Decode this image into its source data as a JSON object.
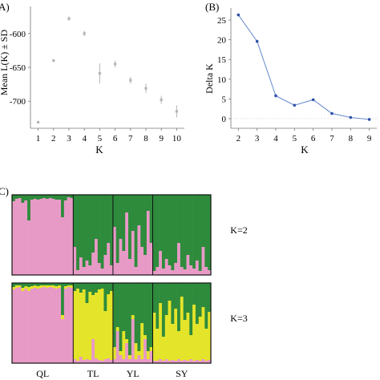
{
  "panels": {
    "a": {
      "label": "A)",
      "ylabel": "Mean L(K) ± SD",
      "xlabel": "K"
    },
    "b": {
      "label": "(B)",
      "ylabel": "Delta K",
      "xlabel": "K"
    },
    "c": {
      "label": "C)"
    }
  },
  "chart_data": [
    {
      "type": "scatter",
      "title": "",
      "xlabel": "K",
      "ylabel": "Mean L(K) ± SD",
      "x": [
        1,
        2,
        3,
        4,
        5,
        6,
        7,
        8,
        9,
        10
      ],
      "y": [
        -731,
        -640,
        -578,
        -600,
        -659,
        -645,
        -669,
        -681,
        -698,
        -715
      ],
      "sd": [
        0,
        2,
        3,
        4,
        15,
        5,
        5,
        7,
        6,
        9
      ],
      "x_ticks": [
        1,
        2,
        3,
        4,
        5,
        6,
        7,
        8,
        9,
        10
      ],
      "y_ticks": [
        -600,
        -650,
        -700
      ],
      "xlim": [
        0.5,
        10.5
      ],
      "ylim": [
        -740,
        -560
      ],
      "grid": false,
      "point_color": "#b5b5b5"
    },
    {
      "type": "line",
      "title": "",
      "xlabel": "K",
      "ylabel": "Delta K",
      "x": [
        2,
        3,
        4,
        5,
        6,
        7,
        8,
        9
      ],
      "y": [
        26.3,
        19.6,
        5.8,
        3.4,
        4.8,
        1.3,
        0.3,
        -0.2
      ],
      "x_ticks": [
        2,
        3,
        4,
        5,
        6,
        7,
        8,
        9
      ],
      "y_ticks": [
        0,
        5,
        10,
        15,
        20,
        25
      ],
      "xlim": [
        1.6,
        9.4
      ],
      "ylim": [
        -1,
        28
      ],
      "grid": false,
      "line_color": "#6f8fcf",
      "point_color": "#2f4fa8"
    },
    {
      "type": "bar",
      "subtype": "stacked-admixture",
      "populations": [
        "QL",
        "TL",
        "YL",
        "SY"
      ],
      "population_sizes": [
        20,
        13,
        13,
        19
      ],
      "colors": {
        "pink": "#e89ac6",
        "green": "#2e8b3c",
        "yellow": "#e4e42a"
      },
      "plots": [
        {
          "label": "K=2",
          "components": [
            "pink",
            "green"
          ],
          "values": [
            [
              0.92,
              0.08
            ],
            [
              0.95,
              0.05
            ],
            [
              0.96,
              0.04
            ],
            [
              0.9,
              0.1
            ],
            [
              0.93,
              0.07
            ],
            [
              0.68,
              0.32
            ],
            [
              0.94,
              0.06
            ],
            [
              0.95,
              0.05
            ],
            [
              0.94,
              0.06
            ],
            [
              0.95,
              0.05
            ],
            [
              0.96,
              0.04
            ],
            [
              0.95,
              0.05
            ],
            [
              0.96,
              0.04
            ],
            [
              0.95,
              0.05
            ],
            [
              0.94,
              0.06
            ],
            [
              0.94,
              0.06
            ],
            [
              0.72,
              0.28
            ],
            [
              0.93,
              0.07
            ],
            [
              0.97,
              0.03
            ],
            [
              0.96,
              0.04
            ],
            [
              0.35,
              0.65
            ],
            [
              0.06,
              0.94
            ],
            [
              0.22,
              0.78
            ],
            [
              0.1,
              0.9
            ],
            [
              0.18,
              0.82
            ],
            [
              0.12,
              0.88
            ],
            [
              0.28,
              0.72
            ],
            [
              0.45,
              0.55
            ],
            [
              0.15,
              0.85
            ],
            [
              0.08,
              0.92
            ],
            [
              0.25,
              0.75
            ],
            [
              0.4,
              0.6
            ],
            [
              0.12,
              0.88
            ],
            [
              0.6,
              0.4
            ],
            [
              0.15,
              0.85
            ],
            [
              0.45,
              0.55
            ],
            [
              0.3,
              0.7
            ],
            [
              0.78,
              0.22
            ],
            [
              0.2,
              0.8
            ],
            [
              0.55,
              0.45
            ],
            [
              0.1,
              0.9
            ],
            [
              0.62,
              0.38
            ],
            [
              0.35,
              0.65
            ],
            [
              0.25,
              0.75
            ],
            [
              0.8,
              0.2
            ],
            [
              0.4,
              0.6
            ],
            [
              0.05,
              0.95
            ],
            [
              0.1,
              0.9
            ],
            [
              0.3,
              0.7
            ],
            [
              0.08,
              0.92
            ],
            [
              0.2,
              0.8
            ],
            [
              0.12,
              0.88
            ],
            [
              0.06,
              0.94
            ],
            [
              0.15,
              0.85
            ],
            [
              0.4,
              0.6
            ],
            [
              0.1,
              0.9
            ],
            [
              0.07,
              0.93
            ],
            [
              0.25,
              0.75
            ],
            [
              0.12,
              0.88
            ],
            [
              0.08,
              0.92
            ],
            [
              0.18,
              0.82
            ],
            [
              0.05,
              0.95
            ],
            [
              0.35,
              0.65
            ],
            [
              0.1,
              0.9
            ],
            [
              0.06,
              0.94
            ]
          ]
        },
        {
          "label": "K=3",
          "components": [
            "pink",
            "yellow",
            "green"
          ],
          "values": [
            [
              0.92,
              0.03,
              0.05
            ],
            [
              0.94,
              0.03,
              0.03
            ],
            [
              0.95,
              0.02,
              0.03
            ],
            [
              0.9,
              0.04,
              0.06
            ],
            [
              0.93,
              0.03,
              0.04
            ],
            [
              0.9,
              0.05,
              0.05
            ],
            [
              0.93,
              0.03,
              0.04
            ],
            [
              0.94,
              0.03,
              0.03
            ],
            [
              0.93,
              0.03,
              0.04
            ],
            [
              0.94,
              0.03,
              0.03
            ],
            [
              0.95,
              0.02,
              0.03
            ],
            [
              0.94,
              0.03,
              0.03
            ],
            [
              0.95,
              0.02,
              0.03
            ],
            [
              0.94,
              0.03,
              0.03
            ],
            [
              0.93,
              0.03,
              0.04
            ],
            [
              0.94,
              0.03,
              0.03
            ],
            [
              0.55,
              0.05,
              0.4
            ],
            [
              0.93,
              0.03,
              0.04
            ],
            [
              0.95,
              0.02,
              0.03
            ],
            [
              0.94,
              0.03,
              0.03
            ],
            [
              0.05,
              0.85,
              0.1
            ],
            [
              0.03,
              0.9,
              0.07
            ],
            [
              0.08,
              0.8,
              0.12
            ],
            [
              0.04,
              0.88,
              0.08
            ],
            [
              0.05,
              0.7,
              0.25
            ],
            [
              0.04,
              0.85,
              0.11
            ],
            [
              0.3,
              0.55,
              0.15
            ],
            [
              0.06,
              0.82,
              0.12
            ],
            [
              0.04,
              0.88,
              0.08
            ],
            [
              0.03,
              0.9,
              0.07
            ],
            [
              0.05,
              0.6,
              0.35
            ],
            [
              0.06,
              0.8,
              0.14
            ],
            [
              0.04,
              0.86,
              0.1
            ],
            [
              0.05,
              0.15,
              0.8
            ],
            [
              0.4,
              0.05,
              0.55
            ],
            [
              0.1,
              0.05,
              0.85
            ],
            [
              0.05,
              0.35,
              0.6
            ],
            [
              0.25,
              0.05,
              0.7
            ],
            [
              0.05,
              0.05,
              0.9
            ],
            [
              0.55,
              0.05,
              0.4
            ],
            [
              0.05,
              0.2,
              0.75
            ],
            [
              0.1,
              0.05,
              0.85
            ],
            [
              0.05,
              0.45,
              0.5
            ],
            [
              0.3,
              0.05,
              0.65
            ],
            [
              0.05,
              0.1,
              0.85
            ],
            [
              0.15,
              0.05,
              0.8
            ],
            [
              0.03,
              0.6,
              0.37
            ],
            [
              0.03,
              0.4,
              0.57
            ],
            [
              0.05,
              0.7,
              0.25
            ],
            [
              0.03,
              0.3,
              0.67
            ],
            [
              0.05,
              0.55,
              0.4
            ],
            [
              0.03,
              0.75,
              0.22
            ],
            [
              0.04,
              0.45,
              0.51
            ],
            [
              0.03,
              0.65,
              0.32
            ],
            [
              0.05,
              0.35,
              0.6
            ],
            [
              0.03,
              0.8,
              0.17
            ],
            [
              0.04,
              0.5,
              0.46
            ],
            [
              0.03,
              0.6,
              0.37
            ],
            [
              0.05,
              0.3,
              0.65
            ],
            [
              0.03,
              0.7,
              0.27
            ],
            [
              0.04,
              0.45,
              0.51
            ],
            [
              0.03,
              0.55,
              0.42
            ],
            [
              0.05,
              0.65,
              0.3
            ],
            [
              0.03,
              0.4,
              0.57
            ],
            [
              0.04,
              0.6,
              0.36
            ]
          ]
        }
      ]
    }
  ]
}
